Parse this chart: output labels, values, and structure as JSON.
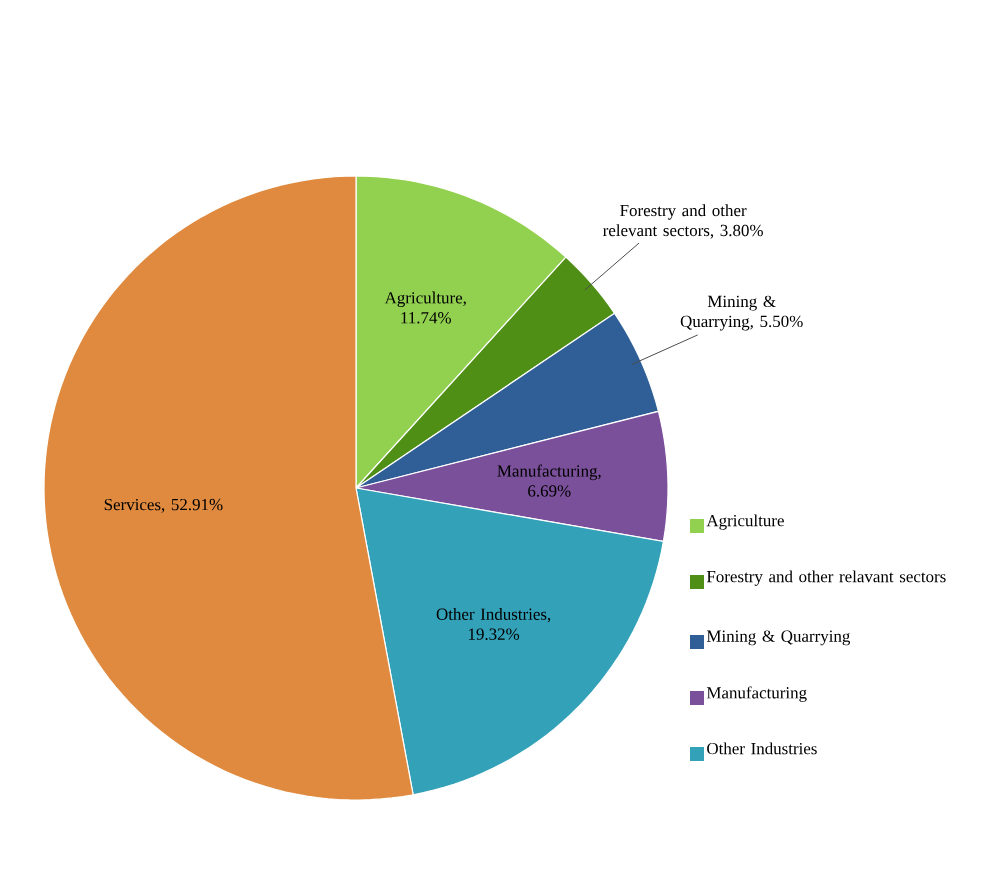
{
  "chart_data": {
    "type": "pie",
    "categories": [
      "Agriculture",
      "Forestry and other relavant sectors",
      "Mining & Quarrying",
      "Manufacturing",
      "Other Industries",
      null
    ],
    "values": [
      11.74,
      3.8,
      5.5,
      6.69,
      19.32,
      52.91
    ],
    "value_labels": [
      "Agriculture, 11.74%",
      "Forestry and other relevant sectors, 3.80%",
      "Mining & Quarrying, 5.50%",
      "Manufacturing, 6.69%",
      "Other Industries, 19.32%",
      "Services, 52.91%"
    ],
    "colors": [
      "#92d050",
      "#4f8f16",
      "#2f5f96",
      "#7b509b",
      "#33a1b8",
      "#df8a3f"
    ],
    "legend": "right"
  }
}
